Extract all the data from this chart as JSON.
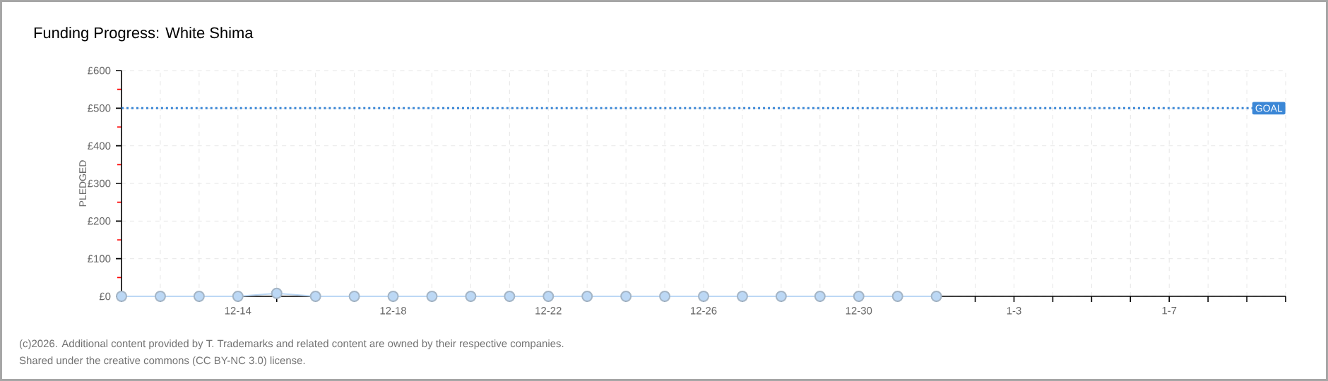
{
  "chart_data": {
    "type": "line",
    "title": "Funding Progress: White Shima",
    "ylabel": "PLEDGED",
    "categories": [
      null,
      null,
      null,
      "12-14",
      null,
      null,
      null,
      "12-18",
      null,
      null,
      null,
      "12-22",
      null,
      null,
      null,
      "12-26",
      null,
      null,
      null,
      "12-30",
      null,
      null,
      null,
      "1-3",
      null,
      null,
      null,
      "1-7",
      null,
      null,
      null
    ],
    "series": [
      {
        "color": "#bcd8f5",
        "values": [
          0,
          0,
          0,
          0,
          8,
          0,
          0,
          0,
          0,
          0,
          0,
          0,
          0,
          0,
          0,
          0,
          0,
          0,
          0,
          0,
          0,
          0,
          null,
          null,
          null,
          null,
          null,
          null,
          null,
          null,
          null
        ]
      }
    ],
    "marker": "circle",
    "line_style": "solid",
    "grid": true,
    "ylim": [
      0,
      600
    ],
    "yticks": [
      {
        "value": 0,
        "label": "£0"
      },
      {
        "value": 50,
        "label": null
      },
      {
        "value": 100,
        "label": "£100"
      },
      {
        "value": 150,
        "label": null
      },
      {
        "value": 200,
        "label": "£200"
      },
      {
        "value": 250,
        "label": null
      },
      {
        "value": 300,
        "label": "£300"
      },
      {
        "value": 350,
        "label": null
      },
      {
        "value": 400,
        "label": "£400"
      },
      {
        "value": 450,
        "label": null
      },
      {
        "value": 500,
        "label": "£500"
      },
      {
        "value": 550,
        "label": null
      },
      {
        "value": 600,
        "label": "£600"
      }
    ],
    "ref_lines": [
      {
        "axis": "y",
        "value": 500,
        "label": "GOAL",
        "color": "#3b87d6",
        "line_style": "dotted"
      }
    ],
    "annotations": [
      "(c)2026. Additional content provided by T. Trademarks and related content are owned by their respective companies.",
      "Shared under the creative commons (CC BY-NC 3.0) license."
    ]
  }
}
